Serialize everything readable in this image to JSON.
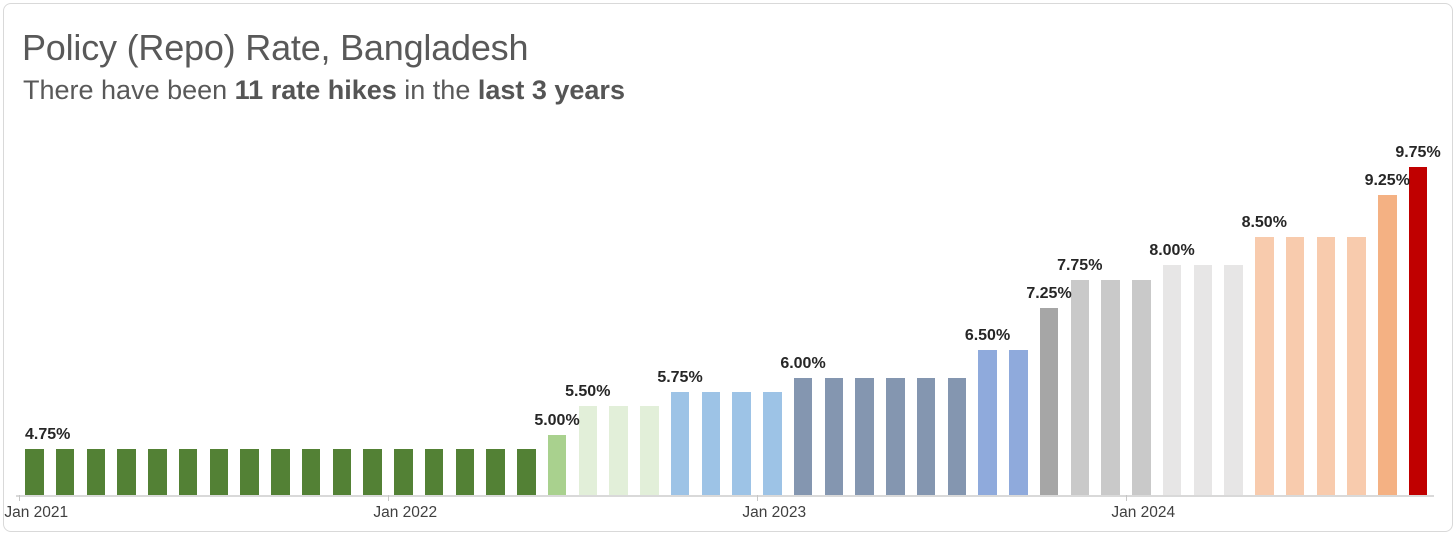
{
  "header": {
    "title": "Policy (Repo) Rate, Bangladesh",
    "subtitle_segments": [
      {
        "text": "There have been ",
        "bold": false
      },
      {
        "text": "11 rate hikes",
        "bold": true
      },
      {
        "text": " in the ",
        "bold": false
      },
      {
        "text": "last 3 years",
        "bold": true
      }
    ]
  },
  "chart_data": {
    "type": "bar",
    "title": "Policy (Repo) Rate, Bangladesh",
    "subtitle": "There have been 11 rate hikes in the last 3 years",
    "unit": "%",
    "xlabel": "",
    "ylabel": "",
    "grid": false,
    "legend": false,
    "ylim": [
      3.93,
      10.1
    ],
    "x": [
      "Jan 2021",
      "Feb 2021",
      "Mar 2021",
      "Apr 2021",
      "May 2021",
      "Jun 2021",
      "Jul 2021",
      "Aug 2021",
      "Sep 2021",
      "Oct 2021",
      "Nov 2021",
      "Dec 2021",
      "Jan 2022",
      "Feb 2022",
      "Mar 2022",
      "Apr 2022",
      "May 2022",
      "Jun 2022",
      "Jul 2022",
      "Aug 2022",
      "Sep 2022",
      "Oct 2022",
      "Nov 2022",
      "Dec 2022",
      "Jan 2023",
      "Feb 2023",
      "Mar 2023",
      "Apr 2023",
      "May 2023",
      "Jun 2023",
      "Jul 2023",
      "Aug 2023",
      "Sep 2023",
      "Oct 2023",
      "Nov 2023",
      "Dec 2023",
      "Jan 2024",
      "Feb 2024",
      "Mar 2024",
      "Apr 2024",
      "May 2024",
      "Jun 2024",
      "Jul 2024",
      "Aug 2024",
      "Sep 2024",
      "Oct 2024"
    ],
    "values": [
      4.75,
      4.75,
      4.75,
      4.75,
      4.75,
      4.75,
      4.75,
      4.75,
      4.75,
      4.75,
      4.75,
      4.75,
      4.75,
      4.75,
      4.75,
      4.75,
      4.75,
      5.0,
      5.5,
      5.5,
      5.5,
      5.75,
      5.75,
      5.75,
      5.75,
      6.0,
      6.0,
      6.0,
      6.0,
      6.0,
      6.0,
      6.5,
      6.5,
      7.25,
      7.75,
      7.75,
      7.75,
      8.0,
      8.0,
      8.0,
      8.5,
      8.5,
      8.5,
      8.5,
      9.25,
      9.75
    ],
    "axis_tick_labels": [
      "Jan 2021",
      "Jan 2022",
      "Jan 2023",
      "Jan 2024"
    ],
    "year_start_indices": [
      0,
      12,
      24,
      36
    ],
    "data_labels": [
      {
        "index": 0,
        "label": "4.75%",
        "align": "left"
      },
      {
        "index": 17,
        "label": "5.00%"
      },
      {
        "index": 18,
        "label": "5.50%"
      },
      {
        "index": 21,
        "label": "5.75%"
      },
      {
        "index": 25,
        "label": "6.00%"
      },
      {
        "index": 31,
        "label": "6.50%"
      },
      {
        "index": 33,
        "label": "7.25%"
      },
      {
        "index": 34,
        "label": "7.75%"
      },
      {
        "index": 37,
        "label": "8.00%"
      },
      {
        "index": 40,
        "label": "8.50%"
      },
      {
        "index": 44,
        "label": "9.25%"
      },
      {
        "index": 45,
        "label": "9.75%"
      }
    ],
    "level_colors": {
      "4.75": "#538135",
      "5.00": "#a9d18e",
      "5.50": "#e2efd9",
      "5.75": "#9dc3e6",
      "6.00": "#8496b0",
      "6.50": "#8faadc",
      "7.25": "#a6a6a6",
      "7.75": "#c9c9c9",
      "8.00": "#e7e6e6",
      "8.50": "#f8cbad",
      "9.25": "#f4b183",
      "9.75": "#c00000"
    },
    "colors": {
      "axis_line": "#d9d9d9",
      "tick_mark": "#c6c6c6",
      "tick_label": "#404040",
      "data_label": "#262626",
      "title": "#595959"
    }
  }
}
